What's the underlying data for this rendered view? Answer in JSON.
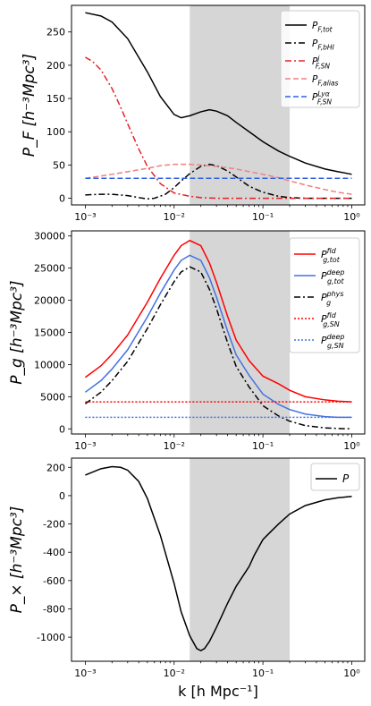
{
  "chart_data": [
    {
      "type": "line",
      "xscale": "log",
      "xlim": [
        0.0007,
        1.4
      ],
      "ylim": [
        -10,
        290
      ],
      "yticks": [
        0,
        50,
        100,
        150,
        200,
        250
      ],
      "xticks": [
        0.001,
        0.01,
        0.1,
        1
      ],
      "xtick_labels": [
        "10⁻³",
        "10⁻²",
        "10⁻¹",
        "10⁰"
      ],
      "ylabel": "P_F [h⁻³Mpc³]",
      "shaded_band": [
        0.015,
        0.2
      ],
      "legend_position": "top-right",
      "series": [
        {
          "name": "P_{F,tot}",
          "color": "#000000",
          "style": "solid",
          "x": [
            0.001,
            0.0015,
            0.002,
            0.003,
            0.005,
            0.007,
            0.01,
            0.012,
            0.015,
            0.02,
            0.025,
            0.03,
            0.04,
            0.05,
            0.07,
            0.1,
            0.15,
            0.2,
            0.3,
            0.5,
            0.7,
            1.0
          ],
          "y": [
            279,
            274,
            265,
            240,
            190,
            153,
            126,
            121,
            124,
            130,
            133,
            131,
            124,
            114,
            100,
            85,
            71,
            63,
            53,
            44,
            40,
            36
          ]
        },
        {
          "name": "P_{F,b_{HI}}",
          "color": "#000000",
          "style": "dashdot",
          "x": [
            0.001,
            0.0015,
            0.002,
            0.003,
            0.004,
            0.005,
            0.006,
            0.008,
            0.01,
            0.012,
            0.015,
            0.02,
            0.025,
            0.03,
            0.04,
            0.05,
            0.07,
            0.1,
            0.15,
            0.2,
            0.3,
            0.5,
            0.7,
            1.0
          ],
          "y": [
            5,
            6,
            6,
            4,
            1,
            -1,
            0,
            6,
            16,
            26,
            37,
            48,
            51,
            49,
            41,
            32,
            18,
            9,
            3,
            1,
            0,
            0,
            0,
            0
          ]
        },
        {
          "name": "P^{j}_{F,SN}",
          "color": "#e8202a",
          "style": "dashdot",
          "x": [
            0.001,
            0.0012,
            0.0015,
            0.002,
            0.0025,
            0.003,
            0.004,
            0.005,
            0.007,
            0.01,
            0.015,
            0.02,
            0.03,
            0.05,
            0.1,
            0.2,
            0.5,
            1.0
          ],
          "y": [
            212,
            206,
            193,
            165,
            137,
            112,
            74,
            48,
            22,
            8,
            3,
            1,
            0,
            0,
            0,
            0,
            0,
            0
          ]
        },
        {
          "name": "P_{F,alias}",
          "color": "#f08080",
          "style": "dashed",
          "x": [
            0.001,
            0.002,
            0.003,
            0.005,
            0.007,
            0.01,
            0.015,
            0.02,
            0.03,
            0.05,
            0.07,
            0.1,
            0.15,
            0.2,
            0.3,
            0.5,
            0.7,
            1.0
          ],
          "y": [
            30,
            36,
            40,
            45,
            49,
            51,
            51,
            50,
            48,
            44,
            40,
            36,
            31,
            26,
            20,
            13,
            9,
            6
          ]
        },
        {
          "name": "P^{Lyα}_{F,SN}",
          "color": "#3060e0",
          "style": "dashed",
          "x": [
            0.001,
            1.0
          ],
          "y": [
            30,
            30
          ]
        }
      ]
    },
    {
      "type": "line",
      "xscale": "log",
      "xlim": [
        0.0007,
        1.4
      ],
      "ylim": [
        -800,
        30800
      ],
      "yticks": [
        0,
        5000,
        10000,
        15000,
        20000,
        25000,
        30000
      ],
      "xticks": [
        0.001,
        0.01,
        0.1,
        1
      ],
      "xtick_labels": [
        "10⁻³",
        "10⁻²",
        "10⁻¹",
        "10⁰"
      ],
      "ylabel": "P_g [h⁻³Mpc³]",
      "shaded_band": [
        0.015,
        0.2
      ],
      "legend_position": "top-right",
      "series": [
        {
          "name": "P^{fid}_{g,tot}",
          "color": "#ff0000",
          "style": "solid",
          "x": [
            0.001,
            0.0015,
            0.002,
            0.003,
            0.005,
            0.007,
            0.01,
            0.012,
            0.015,
            0.02,
            0.025,
            0.03,
            0.04,
            0.05,
            0.07,
            0.1,
            0.15,
            0.2,
            0.3,
            0.5,
            0.7,
            1.0
          ],
          "y": [
            8000,
            9800,
            11600,
            14600,
            19700,
            23400,
            27000,
            28500,
            29300,
            28500,
            25800,
            22800,
            17500,
            13800,
            10600,
            8200,
            7000,
            6000,
            5000,
            4500,
            4300,
            4200
          ]
        },
        {
          "name": "P^{deep}_{g,tot}",
          "color": "#4472e0",
          "style": "solid",
          "x": [
            0.001,
            0.0015,
            0.002,
            0.003,
            0.005,
            0.007,
            0.01,
            0.012,
            0.015,
            0.02,
            0.025,
            0.03,
            0.04,
            0.05,
            0.07,
            0.1,
            0.15,
            0.2,
            0.3,
            0.5,
            0.7,
            1.0
          ],
          "y": [
            5700,
            7500,
            9300,
            12300,
            17400,
            21100,
            24700,
            26200,
            27000,
            26200,
            23500,
            20500,
            15200,
            11500,
            8300,
            5400,
            3800,
            3000,
            2300,
            1900,
            1800,
            1800
          ]
        },
        {
          "name": "P^{phys}_{g}",
          "color": "#000000",
          "style": "dashdot",
          "x": [
            0.001,
            0.0015,
            0.002,
            0.003,
            0.005,
            0.007,
            0.01,
            0.012,
            0.015,
            0.02,
            0.025,
            0.03,
            0.04,
            0.05,
            0.07,
            0.1,
            0.15,
            0.2,
            0.3,
            0.5,
            0.7,
            1.0
          ],
          "y": [
            3900,
            5700,
            7500,
            10500,
            15600,
            19300,
            22900,
            24400,
            25200,
            24400,
            21700,
            18700,
            13400,
            9700,
            6500,
            3600,
            2000,
            1200,
            500,
            150,
            50,
            0
          ]
        },
        {
          "name": "P^{fid}_{g,SN}",
          "color": "#ff0000",
          "style": "dotted",
          "x": [
            0.001,
            1.0
          ],
          "y": [
            4200,
            4200
          ]
        },
        {
          "name": "P^{deep}_{g,SN}",
          "color": "#4472e0",
          "style": "dotted",
          "x": [
            0.001,
            1.0
          ],
          "y": [
            1800,
            1800
          ]
        }
      ]
    },
    {
      "type": "line",
      "xscale": "log",
      "xlim": [
        0.0007,
        1.4
      ],
      "ylim": [
        -1170,
        265
      ],
      "yticks": [
        -1000,
        -800,
        -600,
        -400,
        -200,
        0,
        200
      ],
      "xticks": [
        0.001,
        0.01,
        0.1,
        1
      ],
      "xtick_labels": [
        "10⁻³",
        "10⁻²",
        "10⁻¹",
        "10⁰"
      ],
      "ylabel": "P_× [h⁻³Mpc³]",
      "xlabel": "k [h Mpc⁻¹]",
      "shaded_band": [
        0.015,
        0.2
      ],
      "legend_position": "top-right",
      "series": [
        {
          "name": "P_×",
          "color": "#000000",
          "style": "solid",
          "x": [
            0.001,
            0.0015,
            0.002,
            0.0025,
            0.003,
            0.004,
            0.005,
            0.007,
            0.01,
            0.012,
            0.015,
            0.018,
            0.02,
            0.022,
            0.025,
            0.03,
            0.04,
            0.05,
            0.07,
            0.08,
            0.1,
            0.12,
            0.15,
            0.2,
            0.3,
            0.5,
            0.7,
            1.0
          ],
          "y": [
            145,
            190,
            205,
            200,
            180,
            100,
            -20,
            -280,
            -620,
            -820,
            -990,
            -1080,
            -1095,
            -1080,
            -1030,
            -930,
            -760,
            -640,
            -500,
            -420,
            -310,
            -260,
            -200,
            -130,
            -70,
            -30,
            -15,
            -5
          ]
        }
      ]
    }
  ]
}
